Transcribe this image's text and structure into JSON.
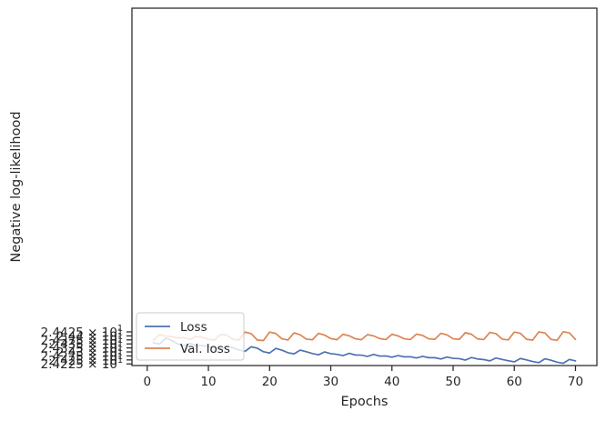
{
  "chart_data": {
    "type": "line",
    "xlabel": "Epochs",
    "ylabel": "Negative log-likelihood",
    "xlim": [
      -2.5,
      73.5
    ],
    "ylim": [
      24.2215,
      24.4445
    ],
    "x_ticks": [
      0,
      10,
      20,
      30,
      40,
      50,
      60,
      70
    ],
    "x_tick_labels": [
      "0",
      "10",
      "20",
      "30",
      "40",
      "50",
      "60",
      "70"
    ],
    "y_ticks": [
      24.2225,
      24.225,
      24.2275,
      24.23,
      24.2325,
      24.235,
      24.2375,
      24.24,
      24.2425
    ],
    "y_tick_labels": [
      {
        "mantissa": "2.4225",
        "base": "10",
        "exp": "1"
      },
      {
        "mantissa": "2.425",
        "base": "10",
        "exp": "1"
      },
      {
        "mantissa": "2.4275",
        "base": "10",
        "exp": "1"
      },
      {
        "mantissa": "2.43",
        "base": "10",
        "exp": "1"
      },
      {
        "mantissa": "2.4325",
        "base": "10",
        "exp": "1"
      },
      {
        "mantissa": "2.435",
        "base": "10",
        "exp": "1"
      },
      {
        "mantissa": "2.4375",
        "base": "10",
        "exp": "1"
      },
      {
        "mantissa": "2.44",
        "base": "10",
        "exp": "1"
      },
      {
        "mantissa": "2.4425",
        "base": "10",
        "exp": "1"
      }
    ],
    "legend_position": "lower-left",
    "grid": false,
    "x": [
      1,
      2,
      3,
      4,
      5,
      6,
      7,
      8,
      9,
      10,
      11,
      12,
      13,
      14,
      15,
      16,
      17,
      18,
      19,
      20,
      21,
      22,
      23,
      24,
      25,
      26,
      27,
      28,
      29,
      30,
      31,
      32,
      33,
      34,
      35,
      36,
      37,
      38,
      39,
      40,
      41,
      42,
      43,
      44,
      45,
      46,
      47,
      48,
      49,
      50,
      51,
      52,
      53,
      54,
      55,
      56,
      57,
      58,
      59,
      60,
      61,
      62,
      63,
      64,
      65,
      66,
      67,
      68,
      69,
      70
    ],
    "series": [
      {
        "name": "Loss",
        "color": "#4c72b0",
        "values": [
          24.2357,
          24.2349,
          24.2386,
          24.2371,
          24.2349,
          24.2339,
          24.2353,
          24.2339,
          24.2341,
          24.2332,
          24.2329,
          24.2318,
          24.2335,
          24.2326,
          24.2312,
          24.2304,
          24.2332,
          24.2323,
          24.2301,
          24.2293,
          24.2322,
          24.2311,
          24.2295,
          24.2288,
          24.2311,
          24.2301,
          24.229,
          24.2282,
          24.23,
          24.2289,
          24.2285,
          24.2277,
          24.2291,
          24.2281,
          24.228,
          24.2272,
          24.2284,
          24.2274,
          24.2275,
          24.2267,
          24.2277,
          24.2269,
          24.227,
          24.2262,
          24.2272,
          24.2264,
          24.2264,
          24.2256,
          24.2268,
          24.226,
          24.2258,
          24.2249,
          24.2265,
          24.2256,
          24.2252,
          24.2244,
          24.2262,
          24.2253,
          24.2245,
          24.2238,
          24.2259,
          24.225,
          24.224,
          24.2233,
          24.2257,
          24.2248,
          24.2236,
          24.2229,
          24.2253,
          24.2244
        ]
      },
      {
        "name": "Val. loss",
        "color": "#dd8452",
        "values": [
          24.2372,
          24.2409,
          24.2399,
          24.2395,
          24.2388,
          24.2389,
          24.2378,
          24.2397,
          24.2391,
          24.2379,
          24.2374,
          24.2409,
          24.2405,
          24.2378,
          24.2374,
          24.2424,
          24.2414,
          24.2374,
          24.2371,
          24.2424,
          24.2415,
          24.2382,
          24.2374,
          24.2419,
          24.2407,
          24.238,
          24.2376,
          24.2416,
          24.2405,
          24.2383,
          24.2376,
          24.241,
          24.2401,
          24.2382,
          24.2376,
          24.2408,
          24.24,
          24.2383,
          24.2377,
          24.241,
          24.24,
          24.2382,
          24.2377,
          24.2411,
          24.2403,
          24.2382,
          24.2378,
          24.2416,
          24.2406,
          24.2382,
          24.2378,
          24.242,
          24.241,
          24.2381,
          24.2377,
          24.2422,
          24.2414,
          24.238,
          24.2375,
          24.2424,
          24.2416,
          24.2379,
          24.2374,
          24.2425,
          24.2418,
          24.2378,
          24.2373,
          24.2426,
          24.2419,
          24.2378
        ]
      }
    ]
  }
}
